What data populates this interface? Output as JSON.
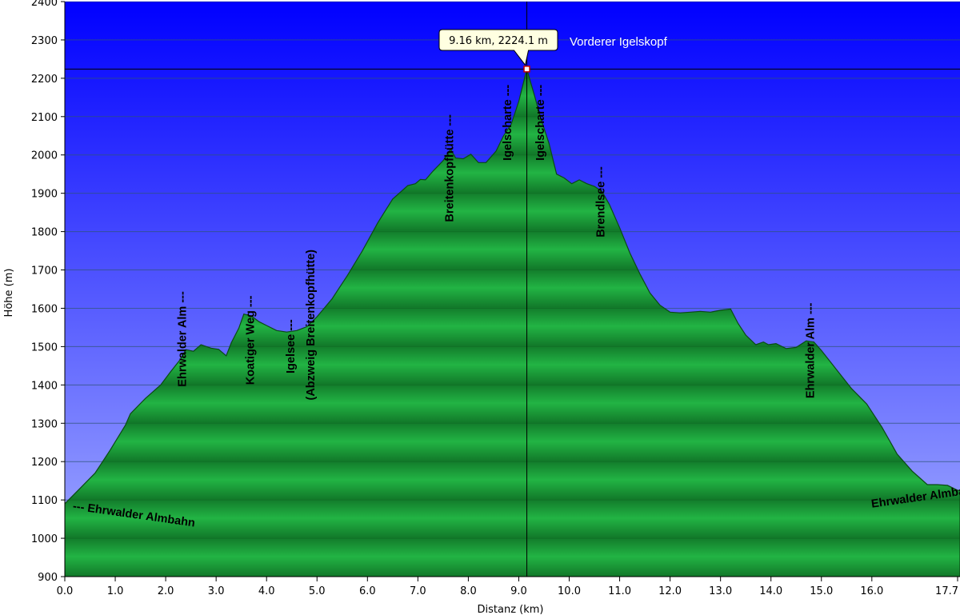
{
  "chart_data": {
    "type": "area",
    "xlabel": "Distanz  (km)",
    "ylabel": "Höhe (m)",
    "xlim": [
      0.0,
      17.7
    ],
    "ylim": [
      900,
      2400
    ],
    "x_ticks": [
      "0.0",
      "1.0",
      "2.0",
      "3.0",
      "4.0",
      "5.0",
      "6.0",
      "7.0",
      "8.0",
      "9.0",
      "10.0",
      "11.0",
      "12.0",
      "13.0",
      "14.0",
      "15.0",
      "16.0",
      "17.7"
    ],
    "x_tick_values": [
      0,
      1,
      2,
      3,
      4,
      5,
      6,
      7,
      8,
      9,
      10,
      11,
      12,
      13,
      14,
      15,
      16,
      17.7
    ],
    "y_ticks": [
      900,
      1000,
      1100,
      1200,
      1300,
      1400,
      1500,
      1600,
      1700,
      1800,
      1900,
      2000,
      2100,
      2200,
      2300,
      2400
    ],
    "grid": true,
    "colors": {
      "sky_top": "#0000ff",
      "sky_bottom": "#9aa6ff",
      "profile": "#1aa63a",
      "profile_dark": "#0f6a22",
      "profile_line": "#0a4a14"
    },
    "series": [
      {
        "x": [
          0.0,
          0.3,
          0.6,
          0.9,
          1.2,
          1.3,
          1.6,
          1.9,
          2.1,
          2.3,
          2.4,
          2.55,
          2.7,
          2.9,
          3.05,
          3.2,
          3.3,
          3.45,
          3.55,
          3.7,
          3.85,
          4.0,
          4.2,
          4.4,
          4.6,
          4.8,
          5.0,
          5.3,
          5.6,
          5.9,
          6.2,
          6.5,
          6.8,
          6.95,
          7.05,
          7.15,
          7.3,
          7.5,
          7.65,
          7.75,
          7.9,
          8.05,
          8.2,
          8.35,
          8.55,
          8.7,
          8.85,
          9.0,
          9.16,
          9.3,
          9.45,
          9.6,
          9.75,
          9.9,
          10.05,
          10.2,
          10.35,
          10.5,
          10.65,
          10.8,
          11.0,
          11.2,
          11.4,
          11.6,
          11.8,
          12.0,
          12.2,
          12.4,
          12.6,
          12.8,
          13.0,
          13.2,
          13.35,
          13.5,
          13.7,
          13.85,
          13.95,
          14.1,
          14.3,
          14.5,
          14.7,
          14.85,
          15.0,
          15.3,
          15.6,
          15.9,
          16.2,
          16.5,
          16.8,
          17.1,
          17.3,
          17.5,
          17.7
        ],
        "y": [
          1090,
          1130,
          1170,
          1230,
          1295,
          1325,
          1365,
          1400,
          1435,
          1468,
          1492,
          1488,
          1505,
          1496,
          1493,
          1476,
          1510,
          1548,
          1585,
          1580,
          1565,
          1555,
          1542,
          1538,
          1542,
          1552,
          1578,
          1625,
          1685,
          1750,
          1822,
          1885,
          1920,
          1925,
          1936,
          1935,
          1958,
          1985,
          2015,
          1992,
          1990,
          2002,
          1980,
          1980,
          2010,
          2050,
          2080,
          2140,
          2224,
          2160,
          2090,
          2030,
          1950,
          1940,
          1925,
          1935,
          1925,
          1918,
          1905,
          1870,
          1810,
          1745,
          1690,
          1640,
          1608,
          1590,
          1588,
          1590,
          1592,
          1590,
          1595,
          1598,
          1560,
          1530,
          1505,
          1512,
          1505,
          1508,
          1495,
          1498,
          1515,
          1512,
          1490,
          1440,
          1390,
          1350,
          1290,
          1220,
          1175,
          1140,
          1140,
          1138,
          1125
        ]
      }
    ],
    "tooltip": {
      "text": "9.16 km, 2224.1 m",
      "x": 9.16,
      "y": 2224.1
    },
    "peak_name": "Vorderer Igelskopf",
    "annotations": [
      {
        "text": "--- Ehrwalder Almbahn",
        "x": 0.15,
        "y": 1075,
        "rotate": 8
      },
      {
        "text": "Ehrwalder Alm ---",
        "x": 2.4,
        "y": 1395,
        "rotate": -90
      },
      {
        "text": "Koatiger Weg ---",
        "x": 3.75,
        "y": 1400,
        "rotate": -90
      },
      {
        "text": "Igelsee ---",
        "x": 4.55,
        "y": 1430,
        "rotate": -90
      },
      {
        "text": "(Abzweig Breitenkopfhütte)",
        "x": 4.95,
        "y": 1360,
        "rotate": -90
      },
      {
        "text": "Breitenkopfhütte ---",
        "x": 7.7,
        "y": 1825,
        "rotate": -90
      },
      {
        "text": "Igelscharte ---",
        "x": 8.85,
        "y": 1985,
        "rotate": -90
      },
      {
        "text": "Igelscharte ---",
        "x": 9.5,
        "y": 1985,
        "rotate": -90
      },
      {
        "text": "Brendlsee ---",
        "x": 10.7,
        "y": 1785,
        "rotate": -90
      },
      {
        "text": "Ehrwalder Alm ---",
        "x": 14.85,
        "y": 1365,
        "rotate": -90
      },
      {
        "text": "Ehrwalder Almbahn ---",
        "x": 16.0,
        "y": 1080,
        "rotate": -8
      }
    ]
  }
}
